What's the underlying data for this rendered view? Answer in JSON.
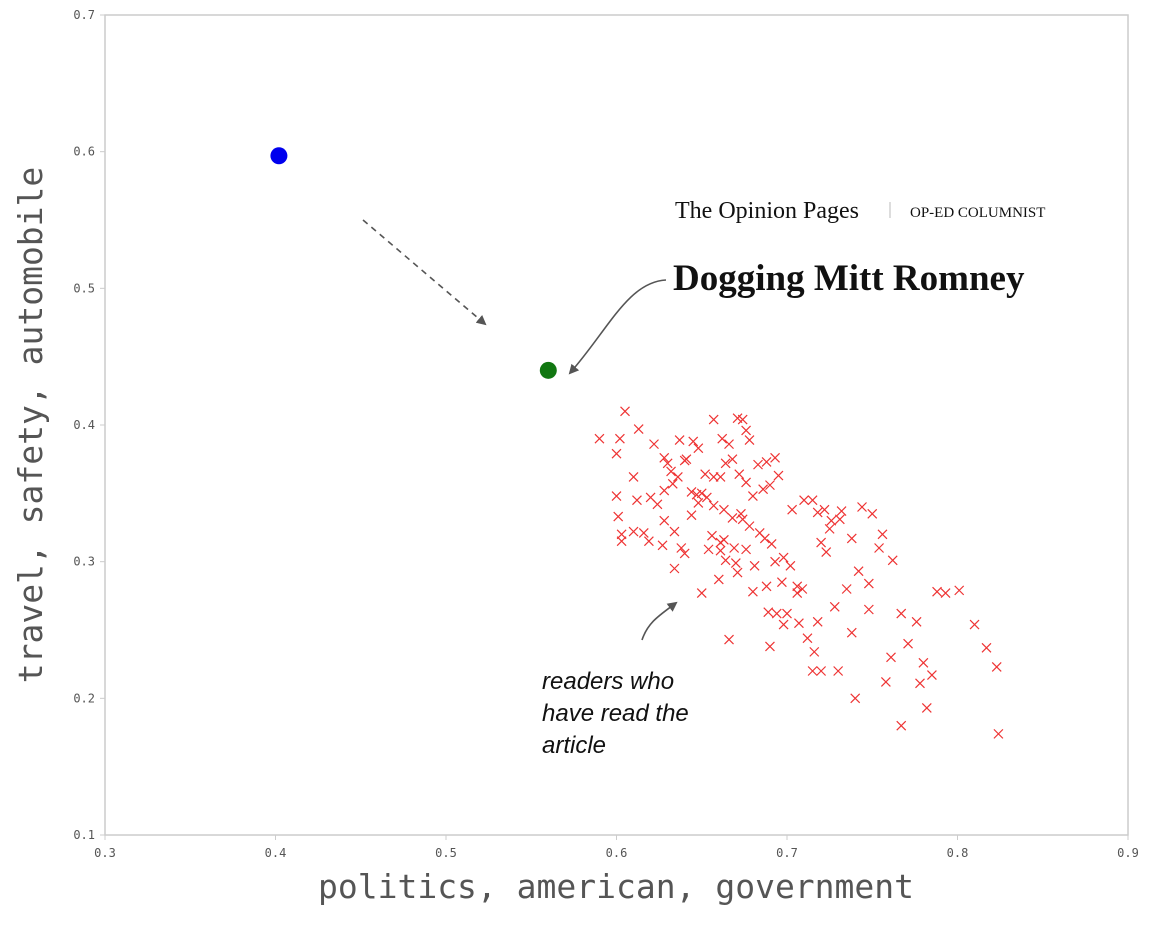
{
  "chart_data": {
    "type": "scatter",
    "title": "",
    "xlabel": "politics, american, government",
    "ylabel": "travel, safety, automobile",
    "xlim": [
      0.3,
      0.9
    ],
    "ylim": [
      0.1,
      0.7
    ],
    "xticks": [
      "0.3",
      "0.4",
      "0.5",
      "0.6",
      "0.7",
      "0.8",
      "0.9"
    ],
    "yticks": [
      "0.1",
      "0.2",
      "0.3",
      "0.4",
      "0.5",
      "0.6",
      "0.7"
    ],
    "grid": false,
    "series": [
      {
        "marker": "circle",
        "color": "#0000ee",
        "points": [
          [
            0.402,
            0.597
          ]
        ]
      },
      {
        "marker": "circle",
        "color": "#117711",
        "points": [
          [
            0.56,
            0.44
          ]
        ]
      },
      {
        "marker": "x",
        "color": "#ee3333",
        "points": [
          [
            0.59,
            0.39
          ],
          [
            0.602,
            0.39
          ],
          [
            0.605,
            0.41
          ],
          [
            0.613,
            0.397
          ],
          [
            0.622,
            0.386
          ],
          [
            0.628,
            0.376
          ],
          [
            0.637,
            0.389
          ],
          [
            0.645,
            0.388
          ],
          [
            0.648,
            0.383
          ],
          [
            0.657,
            0.404
          ],
          [
            0.662,
            0.39
          ],
          [
            0.666,
            0.386
          ],
          [
            0.671,
            0.405
          ],
          [
            0.674,
            0.404
          ],
          [
            0.676,
            0.396
          ],
          [
            0.678,
            0.389
          ],
          [
            0.683,
            0.371
          ],
          [
            0.688,
            0.373
          ],
          [
            0.693,
            0.376
          ],
          [
            0.6,
            0.379
          ],
          [
            0.61,
            0.362
          ],
          [
            0.6,
            0.348
          ],
          [
            0.62,
            0.347
          ],
          [
            0.612,
            0.345
          ],
          [
            0.628,
            0.352
          ],
          [
            0.632,
            0.366
          ],
          [
            0.63,
            0.372
          ],
          [
            0.64,
            0.374
          ],
          [
            0.636,
            0.362
          ],
          [
            0.644,
            0.351
          ],
          [
            0.647,
            0.349
          ],
          [
            0.652,
            0.364
          ],
          [
            0.657,
            0.362
          ],
          [
            0.661,
            0.362
          ],
          [
            0.664,
            0.372
          ],
          [
            0.668,
            0.375
          ],
          [
            0.672,
            0.364
          ],
          [
            0.676,
            0.358
          ],
          [
            0.68,
            0.348
          ],
          [
            0.686,
            0.353
          ],
          [
            0.69,
            0.356
          ],
          [
            0.695,
            0.363
          ],
          [
            0.601,
            0.333
          ],
          [
            0.603,
            0.32
          ],
          [
            0.61,
            0.322
          ],
          [
            0.616,
            0.321
          ],
          [
            0.624,
            0.342
          ],
          [
            0.628,
            0.33
          ],
          [
            0.634,
            0.322
          ],
          [
            0.638,
            0.31
          ],
          [
            0.644,
            0.334
          ],
          [
            0.648,
            0.343
          ],
          [
            0.653,
            0.347
          ],
          [
            0.657,
            0.341
          ],
          [
            0.663,
            0.338
          ],
          [
            0.668,
            0.332
          ],
          [
            0.674,
            0.331
          ],
          [
            0.678,
            0.326
          ],
          [
            0.684,
            0.321
          ],
          [
            0.687,
            0.317
          ],
          [
            0.691,
            0.313
          ],
          [
            0.603,
            0.315
          ],
          [
            0.619,
            0.315
          ],
          [
            0.627,
            0.312
          ],
          [
            0.634,
            0.295
          ],
          [
            0.64,
            0.306
          ],
          [
            0.654,
            0.309
          ],
          [
            0.661,
            0.314
          ],
          [
            0.664,
            0.301
          ],
          [
            0.67,
            0.299
          ],
          [
            0.676,
            0.309
          ],
          [
            0.681,
            0.297
          ],
          [
            0.688,
            0.282
          ],
          [
            0.693,
            0.3
          ],
          [
            0.698,
            0.303
          ],
          [
            0.702,
            0.297
          ],
          [
            0.706,
            0.282
          ],
          [
            0.72,
            0.314
          ],
          [
            0.65,
            0.277
          ],
          [
            0.66,
            0.287
          ],
          [
            0.671,
            0.292
          ],
          [
            0.68,
            0.278
          ],
          [
            0.689,
            0.263
          ],
          [
            0.694,
            0.262
          ],
          [
            0.7,
            0.262
          ],
          [
            0.707,
            0.255
          ],
          [
            0.712,
            0.244
          ],
          [
            0.716,
            0.234
          ],
          [
            0.72,
            0.22
          ],
          [
            0.73,
            0.22
          ],
          [
            0.738,
            0.248
          ],
          [
            0.748,
            0.265
          ],
          [
            0.754,
            0.31
          ],
          [
            0.762,
            0.301
          ],
          [
            0.767,
            0.262
          ],
          [
            0.776,
            0.256
          ],
          [
            0.788,
            0.278
          ],
          [
            0.793,
            0.277
          ],
          [
            0.801,
            0.279
          ],
          [
            0.81,
            0.254
          ],
          [
            0.817,
            0.237
          ],
          [
            0.823,
            0.223
          ],
          [
            0.703,
            0.338
          ],
          [
            0.71,
            0.345
          ],
          [
            0.718,
            0.336
          ],
          [
            0.725,
            0.324
          ],
          [
            0.732,
            0.337
          ],
          [
            0.738,
            0.317
          ],
          [
            0.744,
            0.34
          ],
          [
            0.75,
            0.335
          ],
          [
            0.756,
            0.32
          ],
          [
            0.742,
            0.293
          ],
          [
            0.748,
            0.284
          ],
          [
            0.735,
            0.28
          ],
          [
            0.728,
            0.267
          ],
          [
            0.718,
            0.256
          ],
          [
            0.706,
            0.277
          ],
          [
            0.666,
            0.243
          ],
          [
            0.69,
            0.238
          ],
          [
            0.715,
            0.22
          ],
          [
            0.74,
            0.2
          ],
          [
            0.758,
            0.212
          ],
          [
            0.767,
            0.18
          ],
          [
            0.778,
            0.211
          ],
          [
            0.782,
            0.193
          ],
          [
            0.785,
            0.217
          ],
          [
            0.771,
            0.24
          ],
          [
            0.78,
            0.226
          ],
          [
            0.761,
            0.23
          ],
          [
            0.824,
            0.174
          ],
          [
            0.715,
            0.345
          ],
          [
            0.722,
            0.338
          ],
          [
            0.726,
            0.33
          ],
          [
            0.731,
            0.331
          ],
          [
            0.723,
            0.307
          ],
          [
            0.697,
            0.285
          ],
          [
            0.709,
            0.28
          ],
          [
            0.656,
            0.319
          ],
          [
            0.663,
            0.316
          ],
          [
            0.669,
            0.31
          ],
          [
            0.673,
            0.335
          ],
          [
            0.661,
            0.308
          ],
          [
            0.65,
            0.35
          ],
          [
            0.641,
            0.375
          ],
          [
            0.633,
            0.357
          ],
          [
            0.698,
            0.254
          ]
        ]
      }
    ],
    "annotations": [
      {
        "id": "brand",
        "text": "The Opinion Pages"
      },
      {
        "id": "section",
        "text": "OP-ED COLUMNIST"
      },
      {
        "id": "headline",
        "text": "Dogging Mitt Romney"
      },
      {
        "id": "readers_note",
        "lines": [
          "readers who",
          "have read the",
          "article"
        ]
      }
    ]
  },
  "colors": {
    "axis": "#cccccc",
    "tick_text": "#555555",
    "arrow": "#555555"
  }
}
